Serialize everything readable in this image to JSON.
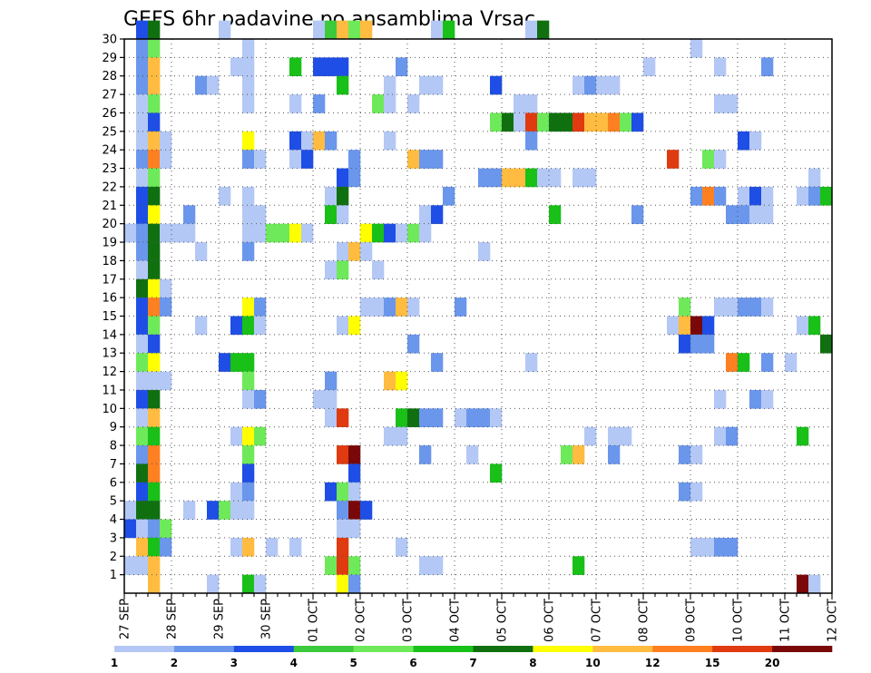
{
  "chart_data": {
    "type": "heatmap",
    "title": "GEFS 6hr padavine po ansamblima Vrsac",
    "xlabel": "",
    "ylabel": "",
    "x_tick_labels": [
      "27 SEP",
      "28 SEP",
      "29 SEP",
      "30 SEP",
      "01 OCT",
      "02 OCT",
      "03 OCT",
      "04 OCT",
      "05 OCT",
      "06 OCT",
      "07 OCT",
      "08 OCT",
      "09 OCT",
      "10 OCT",
      "11 OCT",
      "12 OCT"
    ],
    "y_tick_labels": [
      "1",
      "2",
      "3",
      "4",
      "5",
      "6",
      "7",
      "8",
      "9",
      "10",
      "11",
      "12",
      "13",
      "14",
      "15",
      "16",
      "17",
      "18",
      "19",
      "20",
      "21",
      "22",
      "23",
      "24",
      "25",
      "26",
      "27",
      "28",
      "29",
      "30"
    ],
    "x_range_steps": [
      0,
      60
    ],
    "y_range_members": [
      0,
      30
    ],
    "grid": true,
    "colorbar": {
      "placement": "bottom",
      "labels": [
        "1",
        "2",
        "3",
        "4",
        "5",
        "6",
        "7",
        "8",
        "10",
        "12",
        "15",
        "20"
      ],
      "colors": [
        "#b4c8f5",
        "#6a96ec",
        "#1e4ee6",
        "#3cca3c",
        "#6ee95a",
        "#18c018",
        "#107010",
        "#ffff00",
        "#ffbc40",
        "#ff8020",
        "#e03a10",
        "#7a0808"
      ]
    },
    "cells": [
      [
        30,
        1,
        3
      ],
      [
        30,
        2,
        7
      ],
      [
        30,
        8,
        1
      ],
      [
        30,
        16,
        1
      ],
      [
        30,
        17,
        4
      ],
      [
        30,
        18,
        9
      ],
      [
        30,
        19,
        5
      ],
      [
        30,
        20,
        9
      ],
      [
        30,
        26,
        1
      ],
      [
        30,
        27,
        6
      ],
      [
        30,
        34,
        1
      ],
      [
        30,
        35,
        7
      ],
      [
        29,
        1,
        2
      ],
      [
        29,
        2,
        5
      ],
      [
        29,
        10,
        1
      ],
      [
        29,
        48,
        1
      ],
      [
        28,
        1,
        2
      ],
      [
        28,
        2,
        9
      ],
      [
        28,
        9,
        1
      ],
      [
        28,
        10,
        1
      ],
      [
        28,
        14,
        6
      ],
      [
        28,
        16,
        3
      ],
      [
        28,
        17,
        3
      ],
      [
        28,
        18,
        3
      ],
      [
        28,
        23,
        2
      ],
      [
        28,
        44,
        1
      ],
      [
        28,
        50,
        1
      ],
      [
        28,
        54,
        2
      ],
      [
        27,
        1,
        2
      ],
      [
        27,
        2,
        9
      ],
      [
        27,
        6,
        2
      ],
      [
        27,
        7,
        1
      ],
      [
        27,
        10,
        1
      ],
      [
        27,
        18,
        6
      ],
      [
        27,
        22,
        1
      ],
      [
        27,
        25,
        1
      ],
      [
        27,
        26,
        1
      ],
      [
        27,
        31,
        3
      ],
      [
        27,
        38,
        1
      ],
      [
        27,
        39,
        2
      ],
      [
        27,
        40,
        1
      ],
      [
        27,
        41,
        1
      ],
      [
        26,
        1,
        1
      ],
      [
        26,
        2,
        5
      ],
      [
        26,
        10,
        1
      ],
      [
        26,
        14,
        1
      ],
      [
        26,
        16,
        2
      ],
      [
        26,
        21,
        5
      ],
      [
        26,
        22,
        1
      ],
      [
        26,
        24,
        1
      ],
      [
        26,
        33,
        1
      ],
      [
        26,
        34,
        1
      ],
      [
        26,
        50,
        1
      ],
      [
        26,
        51,
        1
      ],
      [
        25,
        1,
        1
      ],
      [
        25,
        2,
        3
      ],
      [
        25,
        31,
        5
      ],
      [
        25,
        32,
        7
      ],
      [
        25,
        33,
        1
      ],
      [
        25,
        34,
        11
      ],
      [
        25,
        35,
        5
      ],
      [
        25,
        36,
        7
      ],
      [
        25,
        37,
        7
      ],
      [
        25,
        38,
        11
      ],
      [
        25,
        39,
        9
      ],
      [
        25,
        40,
        9
      ],
      [
        25,
        41,
        10
      ],
      [
        25,
        42,
        5
      ],
      [
        25,
        43,
        3
      ],
      [
        24,
        1,
        1
      ],
      [
        24,
        2,
        9
      ],
      [
        24,
        3,
        1
      ],
      [
        24,
        10,
        8
      ],
      [
        24,
        14,
        3
      ],
      [
        24,
        15,
        1
      ],
      [
        24,
        16,
        9
      ],
      [
        24,
        17,
        2
      ],
      [
        24,
        22,
        1
      ],
      [
        24,
        34,
        2
      ],
      [
        24,
        52,
        3
      ],
      [
        24,
        53,
        1
      ],
      [
        23,
        1,
        2
      ],
      [
        23,
        2,
        10
      ],
      [
        23,
        3,
        1
      ],
      [
        23,
        10,
        2
      ],
      [
        23,
        11,
        1
      ],
      [
        23,
        14,
        1
      ],
      [
        23,
        15,
        3
      ],
      [
        23,
        19,
        2
      ],
      [
        23,
        24,
        9
      ],
      [
        23,
        25,
        2
      ],
      [
        23,
        26,
        2
      ],
      [
        23,
        46,
        11
      ],
      [
        23,
        49,
        5
      ],
      [
        23,
        50,
        1
      ],
      [
        22,
        1,
        1
      ],
      [
        22,
        2,
        5
      ],
      [
        22,
        18,
        3
      ],
      [
        22,
        19,
        2
      ],
      [
        22,
        30,
        2
      ],
      [
        22,
        31,
        2
      ],
      [
        22,
        32,
        9
      ],
      [
        22,
        33,
        9
      ],
      [
        22,
        34,
        6
      ],
      [
        22,
        35,
        1
      ],
      [
        22,
        36,
        1
      ],
      [
        22,
        38,
        1
      ],
      [
        22,
        39,
        1
      ],
      [
        22,
        58,
        1
      ],
      [
        21,
        1,
        3
      ],
      [
        21,
        2,
        7
      ],
      [
        21,
        8,
        1
      ],
      [
        21,
        10,
        1
      ],
      [
        21,
        17,
        1
      ],
      [
        21,
        18,
        7
      ],
      [
        21,
        27,
        2
      ],
      [
        21,
        48,
        2
      ],
      [
        21,
        49,
        10
      ],
      [
        21,
        50,
        2
      ],
      [
        21,
        52,
        1
      ],
      [
        21,
        53,
        3
      ],
      [
        21,
        54,
        1
      ],
      [
        21,
        57,
        1
      ],
      [
        21,
        58,
        2
      ],
      [
        21,
        59,
        6
      ],
      [
        20,
        1,
        3
      ],
      [
        20,
        2,
        8
      ],
      [
        20,
        5,
        2
      ],
      [
        20,
        10,
        1
      ],
      [
        20,
        11,
        1
      ],
      [
        20,
        17,
        6
      ],
      [
        20,
        18,
        1
      ],
      [
        20,
        25,
        1
      ],
      [
        20,
        26,
        3
      ],
      [
        20,
        36,
        6
      ],
      [
        20,
        43,
        2
      ],
      [
        20,
        51,
        2
      ],
      [
        20,
        52,
        2
      ],
      [
        20,
        53,
        1
      ],
      [
        20,
        54,
        1
      ],
      [
        19,
        0,
        1
      ],
      [
        19,
        1,
        2
      ],
      [
        19,
        2,
        7
      ],
      [
        19,
        3,
        1
      ],
      [
        19,
        4,
        1
      ],
      [
        19,
        5,
        1
      ],
      [
        19,
        10,
        1
      ],
      [
        19,
        11,
        1
      ],
      [
        19,
        12,
        5
      ],
      [
        19,
        13,
        5
      ],
      [
        19,
        14,
        8
      ],
      [
        19,
        15,
        1
      ],
      [
        19,
        20,
        8
      ],
      [
        19,
        21,
        6
      ],
      [
        19,
        22,
        3
      ],
      [
        19,
        23,
        1
      ],
      [
        19,
        24,
        5
      ],
      [
        19,
        25,
        1
      ],
      [
        18,
        1,
        2
      ],
      [
        18,
        2,
        7
      ],
      [
        18,
        6,
        1
      ],
      [
        18,
        10,
        2
      ],
      [
        18,
        18,
        1
      ],
      [
        18,
        19,
        9
      ],
      [
        18,
        20,
        1
      ],
      [
        18,
        30,
        1
      ],
      [
        17,
        1,
        1
      ],
      [
        17,
        2,
        7
      ],
      [
        17,
        17,
        1
      ],
      [
        17,
        18,
        5
      ],
      [
        17,
        21,
        1
      ],
      [
        16,
        1,
        7
      ],
      [
        16,
        2,
        8
      ],
      [
        16,
        3,
        1
      ],
      [
        15,
        1,
        3
      ],
      [
        15,
        2,
        10
      ],
      [
        15,
        3,
        2
      ],
      [
        15,
        10,
        8
      ],
      [
        15,
        11,
        2
      ],
      [
        15,
        20,
        1
      ],
      [
        15,
        21,
        1
      ],
      [
        15,
        22,
        2
      ],
      [
        15,
        23,
        9
      ],
      [
        15,
        24,
        1
      ],
      [
        15,
        28,
        2
      ],
      [
        15,
        47,
        5
      ],
      [
        15,
        50,
        1
      ],
      [
        15,
        51,
        1
      ],
      [
        15,
        52,
        2
      ],
      [
        15,
        53,
        2
      ],
      [
        15,
        54,
        1
      ],
      [
        14,
        1,
        3
      ],
      [
        14,
        2,
        5
      ],
      [
        14,
        6,
        1
      ],
      [
        14,
        9,
        3
      ],
      [
        14,
        10,
        6
      ],
      [
        14,
        11,
        1
      ],
      [
        14,
        18,
        1
      ],
      [
        14,
        19,
        8
      ],
      [
        14,
        46,
        1
      ],
      [
        14,
        47,
        9
      ],
      [
        14,
        48,
        12
      ],
      [
        14,
        49,
        3
      ],
      [
        14,
        57,
        1
      ],
      [
        14,
        58,
        6
      ],
      [
        13,
        1,
        1
      ],
      [
        13,
        2,
        3
      ],
      [
        13,
        24,
        2
      ],
      [
        13,
        47,
        3
      ],
      [
        13,
        48,
        2
      ],
      [
        13,
        49,
        2
      ],
      [
        13,
        59,
        7
      ],
      [
        12,
        1,
        5
      ],
      [
        12,
        2,
        8
      ],
      [
        12,
        8,
        3
      ],
      [
        12,
        9,
        6
      ],
      [
        12,
        10,
        6
      ],
      [
        12,
        26,
        2
      ],
      [
        12,
        34,
        1
      ],
      [
        12,
        51,
        10
      ],
      [
        12,
        52,
        6
      ],
      [
        12,
        54,
        2
      ],
      [
        12,
        56,
        1
      ],
      [
        11,
        1,
        1
      ],
      [
        11,
        2,
        1
      ],
      [
        11,
        3,
        1
      ],
      [
        11,
        10,
        5
      ],
      [
        11,
        17,
        2
      ],
      [
        11,
        22,
        9
      ],
      [
        11,
        23,
        8
      ],
      [
        10,
        1,
        3
      ],
      [
        10,
        2,
        7
      ],
      [
        10,
        10,
        1
      ],
      [
        10,
        11,
        2
      ],
      [
        10,
        16,
        1
      ],
      [
        10,
        17,
        1
      ],
      [
        10,
        50,
        1
      ],
      [
        10,
        53,
        2
      ],
      [
        10,
        54,
        1
      ],
      [
        9,
        1,
        1
      ],
      [
        9,
        2,
        9
      ],
      [
        9,
        17,
        1
      ],
      [
        9,
        18,
        11
      ],
      [
        9,
        23,
        6
      ],
      [
        9,
        24,
        7
      ],
      [
        9,
        25,
        2
      ],
      [
        9,
        26,
        2
      ],
      [
        9,
        28,
        1
      ],
      [
        9,
        29,
        2
      ],
      [
        9,
        30,
        2
      ],
      [
        9,
        31,
        1
      ],
      [
        8,
        1,
        5
      ],
      [
        8,
        2,
        6
      ],
      [
        8,
        9,
        1
      ],
      [
        8,
        10,
        8
      ],
      [
        8,
        11,
        5
      ],
      [
        8,
        22,
        1
      ],
      [
        8,
        23,
        1
      ],
      [
        8,
        39,
        1
      ],
      [
        8,
        41,
        1
      ],
      [
        8,
        42,
        1
      ],
      [
        8,
        50,
        1
      ],
      [
        8,
        51,
        2
      ],
      [
        8,
        57,
        6
      ],
      [
        7,
        1,
        2
      ],
      [
        7,
        2,
        10
      ],
      [
        7,
        10,
        5
      ],
      [
        7,
        18,
        11
      ],
      [
        7,
        19,
        12
      ],
      [
        7,
        25,
        2
      ],
      [
        7,
        29,
        1
      ],
      [
        7,
        37,
        5
      ],
      [
        7,
        38,
        9
      ],
      [
        7,
        41,
        2
      ],
      [
        7,
        47,
        2
      ],
      [
        7,
        48,
        1
      ],
      [
        6,
        1,
        7
      ],
      [
        6,
        2,
        10
      ],
      [
        6,
        10,
        3
      ],
      [
        6,
        19,
        3
      ],
      [
        6,
        31,
        6
      ],
      [
        5,
        1,
        3
      ],
      [
        5,
        2,
        6
      ],
      [
        5,
        9,
        1
      ],
      [
        5,
        10,
        2
      ],
      [
        5,
        17,
        3
      ],
      [
        5,
        18,
        5
      ],
      [
        5,
        19,
        1
      ],
      [
        5,
        47,
        2
      ],
      [
        5,
        48,
        1
      ],
      [
        4,
        0,
        1
      ],
      [
        4,
        1,
        7
      ],
      [
        4,
        2,
        7
      ],
      [
        4,
        5,
        1
      ],
      [
        4,
        7,
        3
      ],
      [
        4,
        8,
        5
      ],
      [
        4,
        9,
        1
      ],
      [
        4,
        10,
        1
      ],
      [
        4,
        18,
        2
      ],
      [
        4,
        19,
        12
      ],
      [
        4,
        20,
        3
      ],
      [
        3,
        0,
        3
      ],
      [
        3,
        1,
        1
      ],
      [
        3,
        2,
        2
      ],
      [
        3,
        3,
        5
      ],
      [
        3,
        18,
        1
      ],
      [
        3,
        19,
        1
      ],
      [
        2,
        1,
        9
      ],
      [
        2,
        2,
        6
      ],
      [
        2,
        3,
        2
      ],
      [
        2,
        9,
        1
      ],
      [
        2,
        10,
        9
      ],
      [
        2,
        12,
        1
      ],
      [
        2,
        14,
        1
      ],
      [
        2,
        18,
        11
      ],
      [
        2,
        23,
        1
      ],
      [
        2,
        48,
        1
      ],
      [
        2,
        49,
        1
      ],
      [
        2,
        50,
        2
      ],
      [
        2,
        51,
        2
      ],
      [
        1,
        0,
        1
      ],
      [
        1,
        1,
        1
      ],
      [
        1,
        2,
        9
      ],
      [
        1,
        17,
        5
      ],
      [
        1,
        18,
        11
      ],
      [
        1,
        19,
        5
      ],
      [
        1,
        25,
        1
      ],
      [
        1,
        26,
        1
      ],
      [
        1,
        38,
        6
      ],
      [
        0,
        2,
        9
      ],
      [
        0,
        7,
        1
      ],
      [
        0,
        10,
        6
      ],
      [
        0,
        11,
        1
      ],
      [
        0,
        18,
        8
      ],
      [
        0,
        19,
        2
      ],
      [
        0,
        57,
        12
      ],
      [
        0,
        58,
        1
      ]
    ]
  }
}
